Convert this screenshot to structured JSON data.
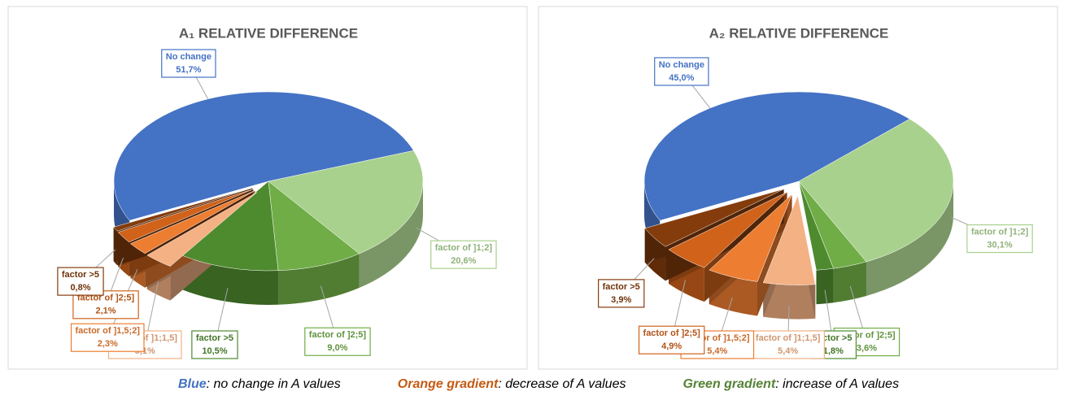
{
  "chart_data": [
    {
      "type": "pie",
      "title": "A₁ RELATIVE DIFFERENCE",
      "categories": [
        "No change",
        "factor of ]1;2]",
        "factor of ]2;5]",
        "factor >5",
        "factor of ]1;1,5]",
        "factor of ]1,5;2]",
        "factor of ]2;5]",
        "factor >5"
      ],
      "values": [
        51.7,
        20.6,
        9.0,
        10.5,
        3.1,
        2.3,
        2.1,
        0.8
      ],
      "value_labels": [
        "51,7%",
        "20,6%",
        "9,0%",
        "10,5%",
        "3,1%",
        "2,3%",
        "2,1%",
        "0,8%"
      ],
      "colors": [
        "#4472c4",
        "#a9d18e",
        "#70ad47",
        "#4e8a2e",
        "#f4b183",
        "#ed7d31",
        "#d0621a",
        "#843c0c"
      ],
      "explode": [
        false,
        false,
        false,
        false,
        true,
        true,
        true,
        true
      ]
    },
    {
      "type": "pie",
      "title": "A₂ RELATIVE DIFFERENCE",
      "categories": [
        "No change",
        "factor of ]1;2]",
        "factor of ]2;5]",
        "factor >5",
        "factor of ]1;1,5]",
        "factor of ]1,5;2]",
        "factor of ]2;5]",
        "factor >5"
      ],
      "values": [
        45.0,
        30.1,
        3.6,
        1.8,
        5.4,
        5.4,
        4.9,
        3.9
      ],
      "value_labels": [
        "45,0%",
        "30,1%",
        "3,6%",
        "1,8%",
        "5,4%",
        "5,4%",
        "4,9%",
        "3,9%"
      ],
      "colors": [
        "#4472c4",
        "#a9d18e",
        "#70ad47",
        "#4e8a2e",
        "#f4b183",
        "#ed7d31",
        "#d0621a",
        "#843c0c"
      ],
      "explode": [
        false,
        false,
        false,
        false,
        true,
        true,
        true,
        true
      ]
    }
  ],
  "caption": [
    {
      "key": "Blue",
      "text": ": no change in A values",
      "color": "#4472c4"
    },
    {
      "key": "Orange gradient",
      "text": ": decrease of A values",
      "color": "#c55a11"
    },
    {
      "key": "Green gradient",
      "text": ": increase of A values",
      "color": "#548235"
    }
  ]
}
